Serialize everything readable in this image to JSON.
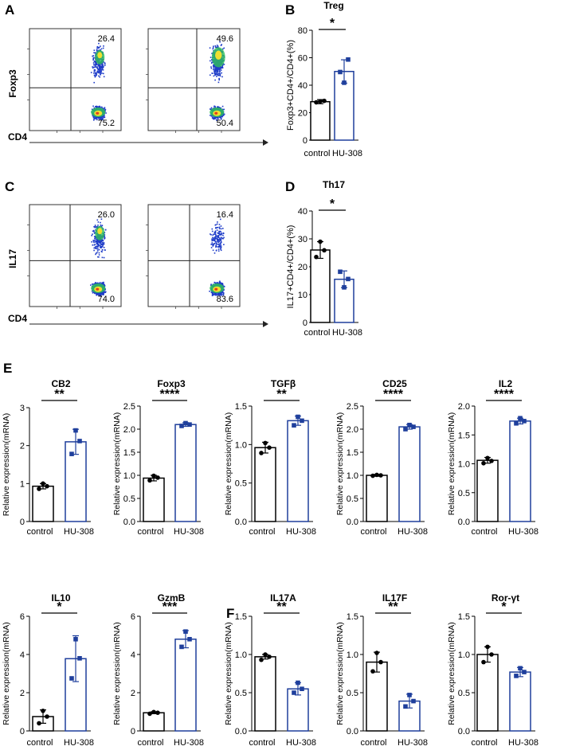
{
  "panel_letters": {
    "A": "A",
    "B": "B",
    "C": "C",
    "D": "D",
    "E": "E",
    "F": "F"
  },
  "colors": {
    "control": "#000000",
    "treated": "#1f3f9c",
    "flow_low": "#1e3cc8",
    "flow_mid": "#2fbf5a",
    "flow_high": "#f0e030",
    "flow_peak": "#e04020"
  },
  "flow": [
    {
      "panel": "A",
      "ylabel": "Foxp3",
      "xlabel": "CD4",
      "plots": [
        {
          "upper_right": "26.4",
          "lower_right": "75.2"
        },
        {
          "upper_right": "49.6",
          "lower_right": "50.4"
        }
      ]
    },
    {
      "panel": "C",
      "ylabel": "IL17",
      "xlabel": "CD4",
      "plots": [
        {
          "upper_right": "26.0",
          "lower_right": "74.0"
        },
        {
          "upper_right": "16.4",
          "lower_right": "83.6"
        }
      ]
    }
  ],
  "chart_data": [
    {
      "type": "bar",
      "panel": "B",
      "title": "Treg",
      "ylabel": "Foxp3+CD4+/CD4+(%)",
      "categories": [
        "control",
        "HU-308"
      ],
      "values": [
        28,
        50
      ],
      "errors": [
        1.5,
        8.5
      ],
      "points": [
        [
          27.5,
          28.6,
          28.3
        ],
        [
          49.6,
          58.7,
          41.8
        ]
      ],
      "ylim": [
        0,
        80
      ],
      "ticks": [
        0,
        20,
        40,
        60,
        80
      ],
      "significance": "*"
    },
    {
      "type": "bar",
      "panel": "D",
      "title": "Th17",
      "ylabel": "IL17+CD4+/CD4+(%)",
      "categories": [
        "control",
        "HU-308"
      ],
      "values": [
        26,
        15.5
      ],
      "errors": [
        3.0,
        3.0
      ],
      "points": [
        [
          23.5,
          25.9,
          29.0
        ],
        [
          18.2,
          15.6,
          12.6
        ]
      ],
      "ylim": [
        0,
        40
      ],
      "ticks": [
        0,
        10,
        20,
        30,
        40
      ],
      "significance": "*"
    },
    {
      "type": "bar",
      "panel": "E",
      "title": "CB2",
      "ylabel": "Relative expression(mRNA)",
      "categories": [
        "control",
        "HU-308"
      ],
      "values": [
        0.93,
        2.1
      ],
      "errors": [
        0.07,
        0.33
      ],
      "points": [
        [
          0.86,
          0.93,
          1.0
        ],
        [
          1.78,
          2.12,
          2.4
        ]
      ],
      "ylim": [
        0,
        3
      ],
      "ticks": [
        0,
        1,
        2,
        3
      ],
      "significance": "**"
    },
    {
      "type": "bar",
      "panel": "E",
      "title": "Foxp3",
      "ylabel": "Relative expression(mRNA)",
      "categories": [
        "control",
        "HU-308"
      ],
      "values": [
        0.94,
        2.1
      ],
      "errors": [
        0.06,
        0.04
      ],
      "points": [
        [
          0.89,
          0.95,
          0.99
        ],
        [
          2.07,
          2.1,
          2.13
        ]
      ],
      "ylim": [
        0,
        2.5
      ],
      "ticks": [
        0,
        0.5,
        1.0,
        1.5,
        2.0,
        2.5
      ],
      "significance": "****"
    },
    {
      "type": "bar",
      "panel": "E",
      "title": "TGFβ",
      "ylabel": "Relative expression(mRNA)",
      "categories": [
        "control",
        "HU-308"
      ],
      "values": [
        0.96,
        1.31
      ],
      "errors": [
        0.07,
        0.06
      ],
      "points": [
        [
          0.89,
          0.96,
          1.02
        ],
        [
          1.25,
          1.31,
          1.36
        ]
      ],
      "ylim": [
        0,
        1.5
      ],
      "ticks": [
        0,
        0.5,
        1.0,
        1.5
      ],
      "significance": "**"
    },
    {
      "type": "bar",
      "panel": "E",
      "title": "CD25",
      "ylabel": "Relative expression(mRNA)",
      "categories": [
        "control",
        "HU-308"
      ],
      "values": [
        1.0,
        2.05
      ],
      "errors": [
        0.02,
        0.05
      ],
      "points": [
        [
          0.99,
          1.0,
          1.01
        ],
        [
          2.0,
          2.05,
          2.09
        ]
      ],
      "ylim": [
        0,
        2.5
      ],
      "ticks": [
        0,
        0.5,
        1.0,
        1.5,
        2.0,
        2.5
      ],
      "significance": "****"
    },
    {
      "type": "bar",
      "panel": "E",
      "title": "IL2",
      "ylabel": "Relative expression(mRNA)",
      "categories": [
        "control",
        "HU-308"
      ],
      "values": [
        1.06,
        1.74
      ],
      "errors": [
        0.05,
        0.05
      ],
      "points": [
        [
          1.01,
          1.05,
          1.1
        ],
        [
          1.7,
          1.74,
          1.79
        ]
      ],
      "ylim": [
        0,
        2.0
      ],
      "ticks": [
        0,
        0.5,
        1.0,
        1.5,
        2.0
      ],
      "significance": "****"
    },
    {
      "type": "bar",
      "panel": "E",
      "title": "IL10",
      "ylabel": "Relative expression(mRNA)",
      "categories": [
        "control",
        "HU-308"
      ],
      "values": [
        0.75,
        3.78
      ],
      "errors": [
        0.35,
        1.2
      ],
      "points": [
        [
          0.4,
          0.75,
          1.05
        ],
        [
          2.75,
          3.8,
          4.8
        ]
      ],
      "ylim": [
        0,
        6
      ],
      "ticks": [
        0,
        2,
        4,
        6
      ],
      "significance": "*"
    },
    {
      "type": "bar",
      "panel": "E",
      "title": "GzmB",
      "ylabel": "Relative expression(mRNA)",
      "categories": [
        "control",
        "HU-308"
      ],
      "values": [
        0.95,
        4.8
      ],
      "errors": [
        0.05,
        0.45
      ],
      "points": [
        [
          0.9,
          0.95,
          0.99
        ],
        [
          4.4,
          4.8,
          5.2
        ]
      ],
      "ylim": [
        0,
        6
      ],
      "ticks": [
        0,
        2,
        4,
        6
      ],
      "significance": "***"
    },
    {
      "type": "bar",
      "panel": "F",
      "title": "IL17A",
      "ylabel": "Relative expression(mRNA)",
      "categories": [
        "control",
        "HU-308"
      ],
      "values": [
        0.97,
        0.55
      ],
      "errors": [
        0.03,
        0.08
      ],
      "points": [
        [
          0.93,
          0.97,
          1.0
        ],
        [
          0.5,
          0.55,
          0.63
        ]
      ],
      "ylim": [
        0,
        1.5
      ],
      "ticks": [
        0,
        0.5,
        1.0,
        1.5
      ],
      "significance": "**"
    },
    {
      "type": "bar",
      "panel": "F",
      "title": "IL17F",
      "ylabel": "Relative expression(mRNA)",
      "categories": [
        "control",
        "HU-308"
      ],
      "values": [
        0.9,
        0.39
      ],
      "errors": [
        0.13,
        0.09
      ],
      "points": [
        [
          0.78,
          0.9,
          1.02
        ],
        [
          0.32,
          0.39,
          0.47
        ]
      ],
      "ylim": [
        0,
        1.5
      ],
      "ticks": [
        0,
        0.5,
        1.0,
        1.5
      ],
      "significance": "**"
    },
    {
      "type": "bar",
      "panel": "F",
      "title": "Ror-γt",
      "ylabel": "Relative expression(mRNA)",
      "categories": [
        "control",
        "HU-308"
      ],
      "values": [
        1.0,
        0.77
      ],
      "errors": [
        0.1,
        0.06
      ],
      "points": [
        [
          0.9,
          1.0,
          1.1
        ],
        [
          0.72,
          0.77,
          0.82
        ]
      ],
      "ylim": [
        0,
        1.5
      ],
      "ticks": [
        0,
        0.5,
        1.0,
        1.5
      ],
      "significance": "*"
    }
  ]
}
